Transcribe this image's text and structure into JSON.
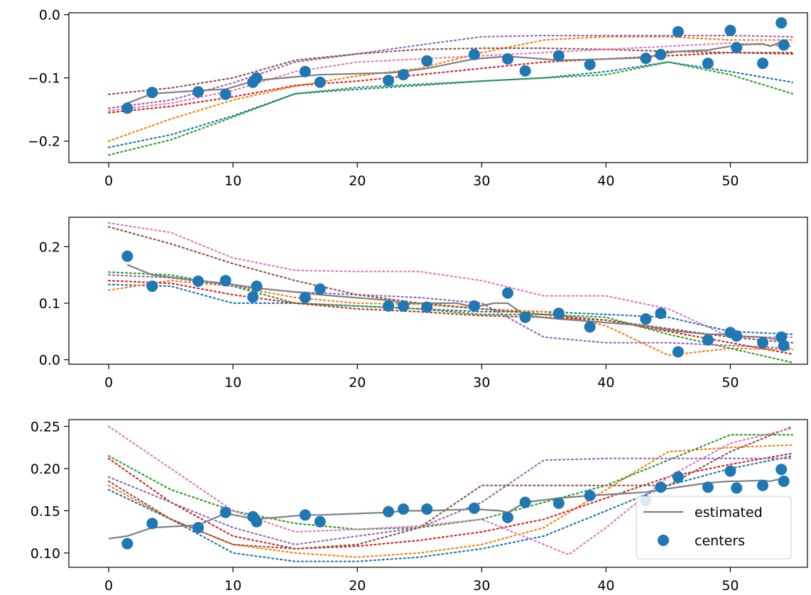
{
  "chart_data": [
    {
      "type": "line",
      "title": "",
      "xlabel": "",
      "ylabel": "",
      "xlim": [
        -3.2,
        56.2
      ],
      "ylim": [
        -0.234,
        0.003
      ],
      "grid": false,
      "xticks": [
        0,
        10,
        20,
        30,
        40,
        50
      ],
      "xtick_labels": [
        "0",
        "10",
        "20",
        "30",
        "40",
        "50"
      ],
      "yticks": [
        0.0,
        -0.1,
        -0.2
      ],
      "ytick_labels": [
        "0.0",
        "−0.1",
        "−0.2"
      ],
      "samples": [
        {
          "name": "sample 1",
          "color": "#1f77b4",
          "x": [
            0,
            5,
            10,
            15,
            20,
            25,
            30,
            35,
            40,
            45,
            50,
            55
          ],
          "y": [
            -0.21,
            -0.19,
            -0.16,
            -0.125,
            -0.118,
            -0.112,
            -0.105,
            -0.1,
            -0.09,
            -0.075,
            -0.09,
            -0.107
          ]
        },
        {
          "name": "sample 2",
          "color": "#ff7f0e",
          "x": [
            0,
            5,
            10,
            15,
            20,
            25,
            30,
            35,
            40,
            45,
            50,
            55
          ],
          "y": [
            -0.2,
            -0.165,
            -0.135,
            -0.113,
            -0.097,
            -0.085,
            -0.06,
            -0.04,
            -0.035,
            -0.035,
            -0.04,
            -0.04
          ]
        },
        {
          "name": "sample 3",
          "color": "#2ca02c",
          "x": [
            0,
            5,
            10,
            15,
            20,
            25,
            30,
            35,
            40,
            45,
            50,
            55
          ],
          "y": [
            -0.222,
            -0.198,
            -0.162,
            -0.125,
            -0.115,
            -0.11,
            -0.105,
            -0.1,
            -0.095,
            -0.075,
            -0.095,
            -0.125
          ]
        },
        {
          "name": "sample 4",
          "color": "#d62728",
          "x": [
            0,
            5,
            10,
            15,
            20,
            25,
            30,
            35,
            40,
            45,
            50,
            55
          ],
          "y": [
            -0.155,
            -0.145,
            -0.13,
            -0.112,
            -0.105,
            -0.095,
            -0.085,
            -0.075,
            -0.07,
            -0.065,
            -0.06,
            -0.062
          ]
        },
        {
          "name": "sample 5",
          "color": "#9467bd",
          "x": [
            0,
            5,
            10,
            15,
            20,
            25,
            30,
            35,
            40,
            45,
            50,
            55
          ],
          "y": [
            -0.148,
            -0.135,
            -0.108,
            -0.075,
            -0.062,
            -0.048,
            -0.035,
            -0.033,
            -0.033,
            -0.033,
            -0.033,
            -0.035
          ]
        },
        {
          "name": "sample 6",
          "color": "#8c564b",
          "x": [
            0,
            5,
            10,
            15,
            20,
            25,
            30,
            35,
            40,
            45,
            50,
            55
          ],
          "y": [
            -0.126,
            -0.116,
            -0.1,
            -0.072,
            -0.062,
            -0.055,
            -0.053,
            -0.053,
            -0.055,
            -0.058,
            -0.06,
            -0.06
          ]
        },
        {
          "name": "sample 7",
          "color": "#e377c2",
          "x": [
            0,
            5,
            10,
            15,
            20,
            25,
            30,
            35,
            40,
            45,
            50,
            55
          ],
          "y": [
            -0.152,
            -0.14,
            -0.12,
            -0.09,
            -0.075,
            -0.07,
            -0.065,
            -0.06,
            -0.055,
            -0.05,
            -0.045,
            -0.05
          ]
        }
      ],
      "estimated": {
        "name": "estimated",
        "color": "#808080",
        "x": [
          1.5,
          3.5,
          7.2,
          9.4,
          11.8,
          15.8,
          17,
          22.5,
          23.7,
          25.6,
          29.4,
          32.1,
          33.5,
          36.2,
          38.7,
          43.2,
          44.4,
          45.8,
          48.2,
          50,
          50.5,
          52.6,
          53.2,
          54.1,
          54.3
        ],
        "y": [
          -0.14,
          -0.125,
          -0.12,
          -0.118,
          -0.104,
          -0.097,
          -0.095,
          -0.092,
          -0.09,
          -0.085,
          -0.07,
          -0.066,
          -0.068,
          -0.072,
          -0.071,
          -0.068,
          -0.062,
          -0.058,
          -0.056,
          -0.05,
          -0.048,
          -0.046,
          -0.05,
          -0.043,
          -0.042
        ]
      },
      "centers": {
        "name": "centers",
        "color": "#1f77b4",
        "x": [
          1.5,
          3.5,
          7.2,
          9.4,
          11.6,
          11.9,
          15.8,
          17,
          22.5,
          23.7,
          25.6,
          29.4,
          32.1,
          33.5,
          36.2,
          38.7,
          43.2,
          44.4,
          45.8,
          48.2,
          50,
          50.5,
          52.6,
          54.1,
          54.3
        ],
        "y": [
          -0.148,
          -0.123,
          -0.122,
          -0.126,
          -0.107,
          -0.1,
          -0.09,
          -0.107,
          -0.104,
          -0.095,
          -0.073,
          -0.063,
          -0.07,
          -0.089,
          -0.065,
          -0.079,
          -0.069,
          -0.063,
          -0.027,
          -0.077,
          -0.025,
          -0.052,
          -0.077,
          -0.013,
          -0.048
        ]
      }
    },
    {
      "type": "line",
      "title": "",
      "xlabel": "",
      "ylabel": "",
      "xlim": [
        -3.2,
        56.2
      ],
      "ylim": [
        -0.008,
        0.252
      ],
      "grid": false,
      "xticks": [
        0,
        10,
        20,
        30,
        40,
        50
      ],
      "xtick_labels": [
        "0",
        "10",
        "20",
        "30",
        "40",
        "50"
      ],
      "yticks": [
        0.0,
        0.1,
        0.2
      ],
      "ytick_labels": [
        "0.0",
        "0.1",
        "0.2"
      ],
      "samples": [
        {
          "name": "sample 1",
          "color": "#1f77b4",
          "x": [
            0,
            5,
            10,
            15,
            20,
            25,
            30,
            35,
            40,
            45,
            50,
            55
          ],
          "y": [
            0.133,
            0.13,
            0.1,
            0.1,
            0.095,
            0.09,
            0.085,
            0.085,
            0.08,
            0.075,
            0.05,
            0.045
          ]
        },
        {
          "name": "sample 2",
          "color": "#ff7f0e",
          "x": [
            0,
            5,
            10,
            15,
            20,
            25,
            30,
            35,
            40,
            45,
            50,
            55
          ],
          "y": [
            0.123,
            0.14,
            0.13,
            0.11,
            0.1,
            0.098,
            0.09,
            0.085,
            0.06,
            0.008,
            0.02,
            0.018
          ]
        },
        {
          "name": "sample 3",
          "color": "#2ca02c",
          "x": [
            0,
            5,
            10,
            15,
            20,
            25,
            30,
            35,
            40,
            45,
            50,
            55
          ],
          "y": [
            0.155,
            0.15,
            0.13,
            0.1,
            0.095,
            0.09,
            0.08,
            0.08,
            0.075,
            0.045,
            0.02,
            -0.005
          ]
        },
        {
          "name": "sample 4",
          "color": "#d62728",
          "x": [
            0,
            5,
            10,
            15,
            20,
            25,
            30,
            35,
            40,
            45,
            50,
            55
          ],
          "y": [
            0.14,
            0.135,
            0.115,
            0.1,
            0.09,
            0.085,
            0.078,
            0.075,
            0.07,
            0.05,
            0.03,
            0.01
          ]
        },
        {
          "name": "sample 5",
          "color": "#9467bd",
          "x": [
            0,
            5,
            10,
            15,
            20,
            25,
            30,
            35,
            40,
            45,
            50,
            55
          ],
          "y": [
            0.15,
            0.145,
            0.13,
            0.12,
            0.115,
            0.11,
            0.1,
            0.04,
            0.03,
            0.03,
            0.025,
            0.02
          ]
        },
        {
          "name": "sample 6",
          "color": "#8c564b",
          "x": [
            0,
            5,
            10,
            15,
            20,
            25,
            30,
            35,
            40,
            45,
            50,
            55
          ],
          "y": [
            0.235,
            0.205,
            0.17,
            0.14,
            0.115,
            0.1,
            0.09,
            0.08,
            0.07,
            0.055,
            0.04,
            0.03
          ]
        },
        {
          "name": "sample 7",
          "color": "#e377c2",
          "x": [
            0,
            5,
            10,
            15,
            20,
            25,
            30,
            35,
            40,
            45,
            50,
            55
          ],
          "y": [
            0.242,
            0.225,
            0.18,
            0.158,
            0.156,
            0.156,
            0.14,
            0.113,
            0.113,
            0.09,
            0.04,
            0.04
          ]
        }
      ],
      "estimated": {
        "name": "estimated",
        "color": "#808080",
        "x": [
          1.5,
          3.5,
          7.2,
          9.4,
          11.8,
          15.8,
          17,
          22.5,
          23.7,
          25.6,
          28,
          29.4,
          31,
          32.1,
          33.5,
          36.2,
          38.7,
          43.2,
          44.4,
          45.8,
          48.2,
          50,
          50.5,
          52.6,
          53.2,
          54.1,
          54.3
        ],
        "y": [
          0.168,
          0.15,
          0.14,
          0.135,
          0.127,
          0.118,
          0.115,
          0.105,
          0.1,
          0.1,
          0.1,
          0.093,
          0.1,
          0.1,
          0.078,
          0.072,
          0.068,
          0.06,
          0.055,
          0.05,
          0.045,
          0.045,
          0.042,
          0.04,
          0.038,
          0.035,
          0.033
        ]
      },
      "centers": {
        "name": "centers",
        "color": "#1f77b4",
        "x": [
          1.5,
          3.5,
          7.2,
          9.4,
          11.6,
          11.9,
          15.8,
          17,
          22.5,
          23.7,
          25.6,
          29.4,
          32.1,
          33.5,
          36.2,
          38.7,
          43.2,
          44.4,
          45.8,
          48.2,
          50,
          50.5,
          52.6,
          54.1,
          54.3
        ],
        "y": [
          0.183,
          0.13,
          0.139,
          0.14,
          0.111,
          0.13,
          0.11,
          0.125,
          0.095,
          0.095,
          0.093,
          0.095,
          0.118,
          0.075,
          0.082,
          0.058,
          0.072,
          0.082,
          0.014,
          0.035,
          0.048,
          0.042,
          0.03,
          0.04,
          0.025
        ]
      }
    },
    {
      "type": "line",
      "title": "",
      "xlabel": "",
      "ylabel": "",
      "xlim": [
        -3.2,
        56.2
      ],
      "ylim": [
        0.083,
        0.258
      ],
      "grid": false,
      "xticks": [
        0,
        10,
        20,
        30,
        40,
        50
      ],
      "xtick_labels": [
        "0",
        "10",
        "20",
        "30",
        "40",
        "50"
      ],
      "yticks": [
        0.1,
        0.15,
        0.2,
        0.25
      ],
      "ytick_labels": [
        "0.10",
        "0.15",
        "0.20",
        "0.25"
      ],
      "legend": {
        "location": "lower-right",
        "entries": [
          {
            "label": "estimated",
            "kind": "line",
            "color": "#808080"
          },
          {
            "label": "centers",
            "kind": "point",
            "color": "#1f77b4"
          }
        ]
      },
      "samples": [
        {
          "name": "sample 1",
          "color": "#1f77b4",
          "x": [
            0,
            5,
            10,
            15,
            20,
            25,
            30,
            35,
            40,
            45,
            50,
            55
          ],
          "y": [
            0.175,
            0.14,
            0.1,
            0.09,
            0.09,
            0.095,
            0.105,
            0.12,
            0.15,
            0.18,
            0.2,
            0.215
          ]
        },
        {
          "name": "sample 2",
          "color": "#ff7f0e",
          "x": [
            0,
            5,
            10,
            15,
            20,
            25,
            30,
            35,
            40,
            45,
            50,
            55
          ],
          "y": [
            0.18,
            0.14,
            0.11,
            0.1,
            0.095,
            0.1,
            0.11,
            0.13,
            0.175,
            0.22,
            0.225,
            0.228
          ]
        },
        {
          "name": "sample 3",
          "color": "#2ca02c",
          "x": [
            0,
            5,
            10,
            15,
            20,
            25,
            30,
            35,
            40,
            45,
            50,
            55
          ],
          "y": [
            0.215,
            0.175,
            0.15,
            0.135,
            0.128,
            0.13,
            0.14,
            0.16,
            0.18,
            0.21,
            0.24,
            0.24
          ]
        },
        {
          "name": "sample 4",
          "color": "#d62728",
          "x": [
            0,
            5,
            10,
            15,
            20,
            25,
            30,
            35,
            40,
            45,
            50,
            55
          ],
          "y": [
            0.212,
            0.16,
            0.12,
            0.105,
            0.108,
            0.115,
            0.125,
            0.14,
            0.165,
            0.19,
            0.205,
            0.218
          ]
        },
        {
          "name": "sample 5",
          "color": "#9467bd",
          "x": [
            0,
            5,
            10,
            15,
            20,
            25,
            30,
            35,
            40,
            45,
            50,
            55
          ],
          "y": [
            0.19,
            0.16,
            0.13,
            0.11,
            0.12,
            0.13,
            0.16,
            0.21,
            0.212,
            0.212,
            0.212,
            0.212
          ]
        },
        {
          "name": "sample 6",
          "color": "#8c564b",
          "x": [
            0,
            5,
            10,
            15,
            20,
            25,
            30,
            35,
            40,
            45,
            50,
            55
          ],
          "y": [
            0.185,
            0.14,
            0.11,
            0.105,
            0.11,
            0.13,
            0.18,
            0.18,
            0.18,
            0.18,
            0.22,
            0.25
          ]
        },
        {
          "name": "sample 7",
          "color": "#e377c2",
          "x": [
            0,
            5,
            10,
            15,
            20,
            25,
            30,
            35,
            37,
            40,
            45,
            50,
            55
          ],
          "y": [
            0.25,
            0.2,
            0.15,
            0.125,
            0.128,
            0.132,
            0.14,
            0.11,
            0.098,
            0.13,
            0.19,
            0.23,
            0.248
          ]
        }
      ],
      "estimated": {
        "name": "estimated",
        "color": "#808080",
        "x": [
          0,
          1.5,
          3.5,
          7.2,
          9.4,
          11.8,
          15.8,
          17,
          22.5,
          23.7,
          25.6,
          29.4,
          31.5,
          32.1,
          33.5,
          36.2,
          38.7,
          43.2,
          44.4,
          45.8,
          48.2,
          50,
          50.5,
          52.6,
          53.2,
          54.1,
          54.3
        ],
        "y": [
          0.117,
          0.12,
          0.13,
          0.133,
          0.147,
          0.14,
          0.145,
          0.145,
          0.148,
          0.15,
          0.15,
          0.152,
          0.15,
          0.148,
          0.16,
          0.165,
          0.168,
          0.172,
          0.175,
          0.178,
          0.183,
          0.185,
          0.185,
          0.186,
          0.185,
          0.188,
          0.19
        ]
      },
      "centers": {
        "name": "centers",
        "color": "#1f77b4",
        "x": [
          1.5,
          3.5,
          7.2,
          9.4,
          11.6,
          11.9,
          15.8,
          17,
          22.5,
          23.7,
          25.6,
          29.4,
          32.1,
          33.5,
          36.2,
          38.7,
          43.2,
          44.4,
          45.8,
          48.2,
          50,
          50.5,
          52.6,
          54.1,
          54.3
        ],
        "y": [
          0.111,
          0.135,
          0.13,
          0.148,
          0.143,
          0.137,
          0.145,
          0.137,
          0.149,
          0.152,
          0.152,
          0.153,
          0.142,
          0.16,
          0.159,
          0.168,
          0.162,
          0.178,
          0.19,
          0.178,
          0.197,
          0.177,
          0.18,
          0.199,
          0.185
        ]
      }
    }
  ]
}
